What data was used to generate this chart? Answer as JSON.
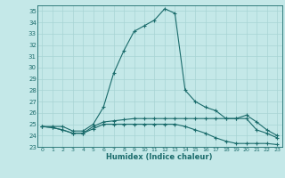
{
  "xlabel": "Humidex (Indice chaleur)",
  "background_color": "#c4e8e8",
  "line_color": "#1a6b6b",
  "grid_color": "#a8d4d4",
  "x_values": [
    0,
    1,
    2,
    3,
    4,
    5,
    6,
    7,
    8,
    9,
    10,
    11,
    12,
    13,
    14,
    15,
    16,
    17,
    18,
    19,
    20,
    21,
    22,
    23
  ],
  "line1": [
    24.8,
    24.8,
    24.8,
    24.4,
    24.4,
    25.0,
    26.5,
    29.5,
    31.5,
    33.2,
    33.7,
    34.2,
    35.2,
    34.8,
    28.0,
    27.0,
    26.5,
    26.2,
    25.5,
    25.5,
    25.8,
    25.2,
    24.5,
    24.0
  ],
  "line2": [
    24.8,
    24.7,
    24.5,
    24.2,
    24.2,
    24.8,
    25.2,
    25.3,
    25.4,
    25.5,
    25.5,
    25.5,
    25.5,
    25.5,
    25.5,
    25.5,
    25.5,
    25.5,
    25.5,
    25.5,
    25.5,
    24.5,
    24.2,
    23.8
  ],
  "line3": [
    24.8,
    24.7,
    24.5,
    24.2,
    24.2,
    24.6,
    25.0,
    25.0,
    25.0,
    25.0,
    25.0,
    25.0,
    25.0,
    25.0,
    24.8,
    24.5,
    24.2,
    23.8,
    23.5,
    23.3,
    23.3,
    23.3,
    23.3,
    23.2
  ],
  "ylim": [
    23,
    35.5
  ],
  "yticks": [
    23,
    24,
    25,
    26,
    27,
    28,
    29,
    30,
    31,
    32,
    33,
    34,
    35
  ],
  "xlim": [
    -0.5,
    23.5
  ],
  "xticks": [
    0,
    1,
    2,
    3,
    4,
    5,
    6,
    7,
    8,
    9,
    10,
    11,
    12,
    13,
    14,
    15,
    16,
    17,
    18,
    19,
    20,
    21,
    22,
    23
  ]
}
